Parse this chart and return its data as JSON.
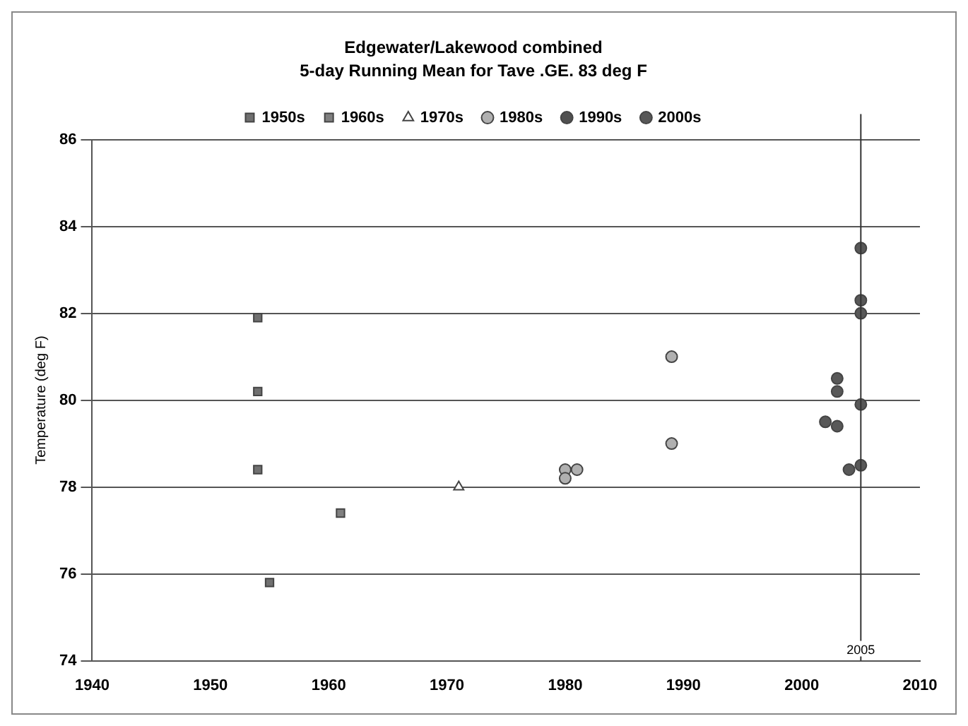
{
  "chart_data": {
    "type": "scatter",
    "title": "Edgewater/Lakewood combined",
    "subtitle": "5-day Running Mean for Tave .GE. 83 deg F",
    "ylabel": "Temperature (deg F)",
    "series": [
      {
        "name": "1950s",
        "color": "#707070",
        "marker": "square",
        "x": [
          1954,
          1954,
          1954,
          1955
        ],
        "values": [
          81.9,
          80.2,
          78.4,
          75.8
        ]
      },
      {
        "name": "1960s",
        "color": "#808080",
        "marker": "square",
        "x": [
          1961
        ],
        "values": [
          77.4
        ]
      },
      {
        "name": "1970s",
        "color": "#ffffff",
        "marker": "triangle",
        "x": [
          1971
        ],
        "values": [
          78.0
        ]
      },
      {
        "name": "1980s",
        "color": "#b0b0b0",
        "marker": "circle",
        "x": [
          1980,
          1980,
          1981,
          1989,
          1989
        ],
        "values": [
          78.4,
          78.2,
          78.4,
          81.0,
          79.0
        ]
      },
      {
        "name": "1990s",
        "color": "#505050",
        "marker": "circle"
      },
      {
        "name": "2000s",
        "color": "#585858",
        "marker": "circle",
        "x": [
          2002,
          2003,
          2003,
          2003,
          2004,
          2005,
          2005,
          2005,
          2005,
          2005
        ],
        "values": [
          79.5,
          80.5,
          80.2,
          79.4,
          78.4,
          83.5,
          82.3,
          82.0,
          79.9,
          78.5
        ]
      }
    ],
    "xlim": [
      1940,
      2010
    ],
    "xticks": [
      1940,
      1950,
      1960,
      1970,
      1980,
      1990,
      2000,
      2010
    ],
    "ylim": [
      74,
      86
    ],
    "yticks": [
      74,
      76,
      78,
      80,
      82,
      84,
      86
    ],
    "grid": "y",
    "legend": "top",
    "ref_lines": [
      {
        "axis": "x",
        "value": 2005,
        "label": "2005",
        "color": "#333333"
      }
    ]
  }
}
